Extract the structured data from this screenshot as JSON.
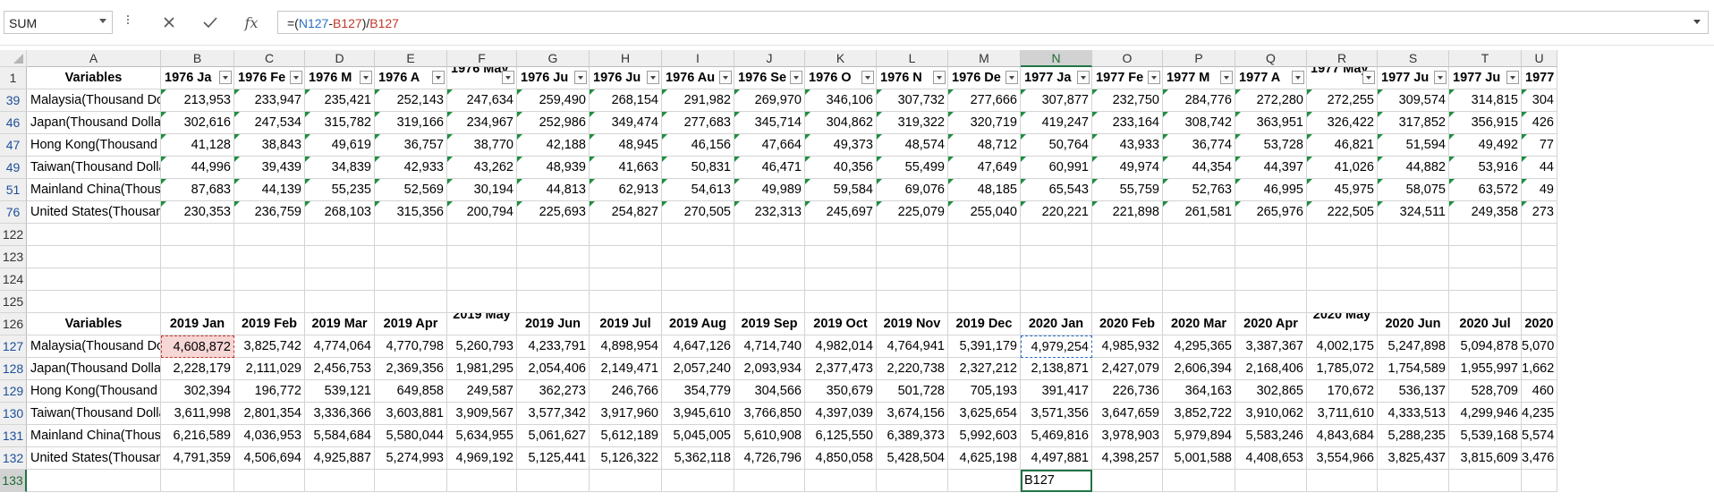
{
  "formula_bar": {
    "name_box": "SUM",
    "cancel_icon": "x-icon",
    "enter_icon": "checkmark-icon",
    "function_icon": "fx-icon",
    "fx_label": "fx",
    "formula_parts": [
      "=(",
      "N127",
      "-",
      "B127",
      ")/",
      "B127"
    ]
  },
  "column_headers": [
    "A",
    "B",
    "C",
    "D",
    "E",
    "F",
    "G",
    "H",
    "I",
    "J",
    "K",
    "L",
    "M",
    "N",
    "O",
    "P",
    "Q",
    "R",
    "S",
    "T",
    "U"
  ],
  "selected_column": "N",
  "selected_row": "133",
  "top_table": {
    "header_row_number": "1",
    "first_header": "Variables",
    "headers": [
      "1976 Ja",
      "1976 Fe",
      "1976 M",
      "1976 A",
      "1976 May",
      "1976 Ju",
      "1976 Ju",
      "1976 Au",
      "1976 Se",
      "1976 O",
      "1976 N",
      "1976 De",
      "1977 Ja",
      "1977 Fe",
      "1977 M",
      "1977 A",
      "1977 May",
      "1977 Ju",
      "1977 Ju",
      "1977"
    ],
    "rows": [
      {
        "num": "39",
        "label": "Malaysia(Thousand Dollars)",
        "values": [
          "213,953",
          "233,947",
          "235,421",
          "252,143",
          "247,634",
          "259,490",
          "268,154",
          "291,982",
          "269,970",
          "346,106",
          "307,732",
          "277,666",
          "307,877",
          "232,750",
          "284,776",
          "272,280",
          "272,255",
          "309,574",
          "314,815",
          "304"
        ]
      },
      {
        "num": "46",
        "label": "Japan(Thousand Dollars)",
        "values": [
          "302,616",
          "247,534",
          "315,782",
          "319,166",
          "234,967",
          "252,986",
          "349,474",
          "277,683",
          "345,714",
          "304,862",
          "319,322",
          "320,719",
          "419,247",
          "233,164",
          "308,742",
          "363,951",
          "326,422",
          "317,852",
          "356,915",
          "426"
        ]
      },
      {
        "num": "47",
        "label": "Hong Kong(Thousand Dollars)",
        "values": [
          "41,128",
          "38,843",
          "49,619",
          "36,757",
          "38,770",
          "42,188",
          "48,945",
          "46,156",
          "47,664",
          "49,373",
          "48,574",
          "48,712",
          "50,764",
          "43,933",
          "36,774",
          "53,728",
          "46,821",
          "51,594",
          "49,492",
          "77"
        ]
      },
      {
        "num": "49",
        "label": "Taiwan(Thousand Dollars)",
        "values": [
          "44,996",
          "39,439",
          "34,839",
          "42,933",
          "43,262",
          "48,939",
          "41,663",
          "50,831",
          "46,471",
          "40,356",
          "55,499",
          "47,649",
          "60,991",
          "49,974",
          "44,354",
          "44,397",
          "41,026",
          "44,882",
          "53,916",
          "44"
        ]
      },
      {
        "num": "51",
        "label": "Mainland China(Thousand Dollars)",
        "values": [
          "87,683",
          "44,139",
          "55,235",
          "52,569",
          "30,194",
          "44,813",
          "62,913",
          "54,613",
          "49,989",
          "59,584",
          "69,076",
          "48,185",
          "65,543",
          "55,759",
          "52,763",
          "46,995",
          "45,975",
          "58,075",
          "63,572",
          "49"
        ]
      },
      {
        "num": "76",
        "label": "United States(Thousand Dollars)",
        "values": [
          "230,353",
          "236,759",
          "268,103",
          "315,356",
          "200,794",
          "225,693",
          "254,827",
          "270,505",
          "232,313",
          "245,697",
          "225,079",
          "255,040",
          "220,221",
          "221,898",
          "261,581",
          "265,976",
          "222,505",
          "324,511",
          "249,358",
          "273"
        ]
      }
    ]
  },
  "blank_rows": [
    "122",
    "123",
    "124",
    "125"
  ],
  "bottom_table": {
    "header_row_number": "126",
    "first_header": "Variables",
    "headers": [
      "2019 Jan",
      "2019 Feb",
      "2019 Mar",
      "2019 Apr",
      "2019 May",
      "2019 Jun",
      "2019 Jul",
      "2019 Aug",
      "2019 Sep",
      "2019 Oct",
      "2019 Nov",
      "2019 Dec",
      "2020 Jan",
      "2020 Feb",
      "2020 Mar",
      "2020 Apr",
      "2020 May",
      "2020 Jun",
      "2020 Jul",
      "2020"
    ],
    "rows": [
      {
        "num": "127",
        "label": "Malaysia(Thousand Dollars)",
        "values": [
          "4,608,872",
          "3,825,742",
          "4,774,064",
          "4,770,798",
          "5,260,793",
          "4,233,791",
          "4,898,954",
          "4,647,126",
          "4,714,740",
          "4,982,014",
          "4,764,941",
          "5,391,179",
          "4,979,254",
          "4,985,932",
          "4,295,365",
          "3,387,367",
          "4,002,175",
          "5,247,898",
          "5,094,878",
          "5,070"
        ]
      },
      {
        "num": "128",
        "label": "Japan(Thousand Dollars)",
        "values": [
          "2,228,179",
          "2,111,029",
          "2,456,753",
          "2,369,356",
          "1,981,295",
          "2,054,406",
          "2,149,471",
          "2,057,240",
          "2,093,934",
          "2,377,473",
          "2,220,738",
          "2,327,212",
          "2,138,871",
          "2,427,079",
          "2,606,394",
          "2,168,406",
          "1,785,072",
          "1,754,589",
          "1,955,997",
          "1,662"
        ]
      },
      {
        "num": "129",
        "label": "Hong Kong(Thousand Dollars)",
        "values": [
          "302,394",
          "196,772",
          "539,121",
          "649,858",
          "249,587",
          "362,273",
          "246,766",
          "354,779",
          "304,566",
          "350,679",
          "501,728",
          "705,193",
          "391,417",
          "226,736",
          "364,163",
          "302,865",
          "170,672",
          "536,137",
          "528,709",
          "460"
        ]
      },
      {
        "num": "130",
        "label": "Taiwan(Thousand Dollars)",
        "values": [
          "3,611,998",
          "2,801,354",
          "3,336,366",
          "3,603,881",
          "3,909,567",
          "3,577,342",
          "3,917,960",
          "3,945,610",
          "3,766,850",
          "4,397,039",
          "3,674,156",
          "3,625,654",
          "3,571,356",
          "3,647,659",
          "3,852,722",
          "3,910,062",
          "3,711,610",
          "4,333,513",
          "4,299,946",
          "4,235"
        ]
      },
      {
        "num": "131",
        "label": "Mainland China(Thousand Dollars)",
        "values": [
          "6,216,589",
          "4,036,953",
          "5,584,684",
          "5,580,044",
          "5,634,955",
          "5,061,627",
          "5,612,189",
          "5,045,005",
          "5,610,908",
          "6,125,550",
          "6,389,373",
          "5,992,603",
          "5,469,816",
          "3,978,903",
          "5,979,894",
          "5,583,246",
          "4,843,684",
          "5,288,235",
          "5,539,168",
          "5,574"
        ]
      },
      {
        "num": "132",
        "label": "United States(Thousand Dollars)",
        "values": [
          "4,791,359",
          "4,506,694",
          "4,925,887",
          "5,274,993",
          "4,969,192",
          "5,125,441",
          "5,126,322",
          "5,362,118",
          "4,726,796",
          "4,850,058",
          "5,428,504",
          "4,625,198",
          "4,497,881",
          "4,398,257",
          "5,001,588",
          "4,408,653",
          "3,554,966",
          "3,825,437",
          "3,815,609",
          "3,476"
        ]
      }
    ]
  },
  "edit_row": {
    "num": "133",
    "edit_text": "B127"
  }
}
